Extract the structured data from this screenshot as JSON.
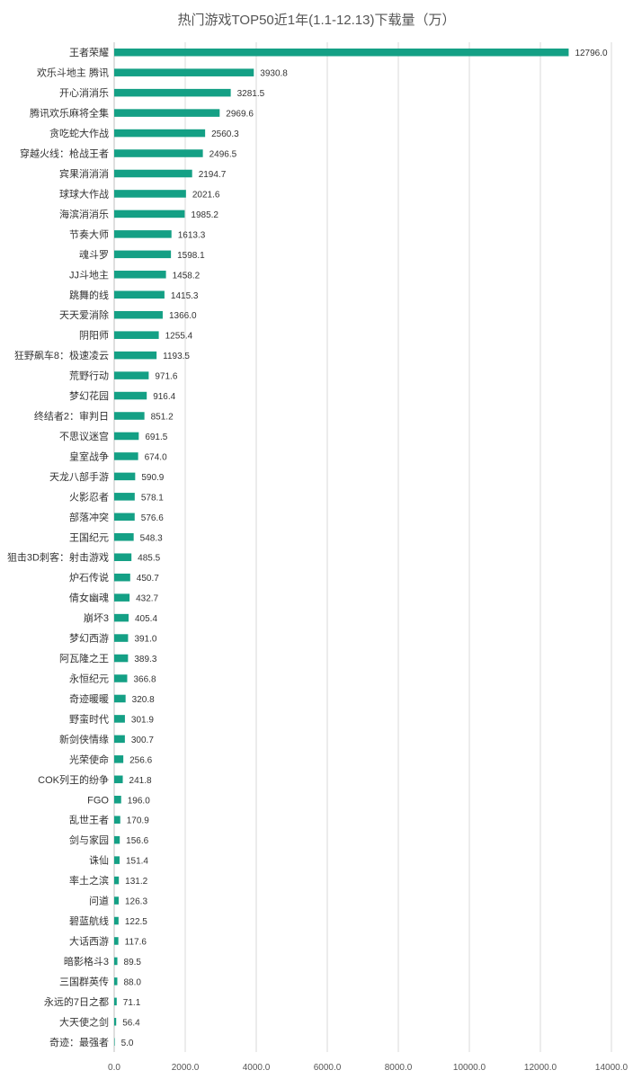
{
  "chart_data": {
    "type": "bar",
    "orientation": "horizontal",
    "title": "热门游戏TOP50近1年(1.1-12.13)下载量（万）",
    "xlim": [
      0,
      14000
    ],
    "xticks": [
      "0.0",
      "2000.0",
      "4000.0",
      "6000.0",
      "8000.0",
      "10000.0",
      "12000.0",
      "14000.0"
    ],
    "grid": true,
    "bar_color": "#14a085",
    "categories": [
      "王者荣耀",
      "欢乐斗地主 腾讯",
      "开心消消乐",
      "腾讯欢乐麻将全集",
      "贪吃蛇大作战",
      "穿越火线：枪战王者",
      "宾果消消消",
      "球球大作战",
      "海滨消消乐",
      "节奏大师",
      "魂斗罗",
      "JJ斗地主",
      "跳舞的线",
      "天天爱消除",
      "阴阳师",
      "狂野飙车8：极速凌云",
      "荒野行动",
      "梦幻花园",
      "终结者2：审判日",
      "不思议迷宫",
      "皇室战争",
      "天龙八部手游",
      "火影忍者",
      "部落冲突",
      "王国纪元",
      "狙击3D刺客：射击游戏",
      "炉石传说",
      "倩女幽魂",
      "崩坏3",
      "梦幻西游",
      "阿瓦隆之王",
      "永恒纪元",
      "奇迹暖暖",
      "野蛮时代",
      "新剑侠情缘",
      "光荣使命",
      "COK列王的纷争",
      "FGO",
      "乱世王者",
      "剑与家园",
      "诛仙",
      "率土之滨",
      "问道",
      "碧蓝航线",
      "大话西游",
      "暗影格斗3",
      "三国群英传",
      "永远的7日之都",
      "大天使之剑",
      "奇迹：最强者"
    ],
    "values": [
      12796.0,
      3930.8,
      3281.5,
      2969.6,
      2560.3,
      2496.5,
      2194.7,
      2021.6,
      1985.2,
      1613.3,
      1598.1,
      1458.2,
      1415.3,
      1366.0,
      1255.4,
      1193.5,
      971.6,
      916.4,
      851.2,
      691.5,
      674.0,
      590.9,
      578.1,
      576.6,
      548.3,
      485.5,
      450.7,
      432.7,
      405.4,
      391.0,
      389.3,
      366.8,
      320.8,
      301.9,
      300.7,
      256.6,
      241.8,
      196.0,
      170.9,
      156.6,
      151.4,
      131.2,
      126.3,
      122.5,
      117.6,
      89.5,
      88.0,
      71.1,
      56.4,
      5.0
    ],
    "value_labels": [
      "12796.0",
      "3930.8",
      "3281.5",
      "2969.6",
      "2560.3",
      "2496.5",
      "2194.7",
      "2021.6",
      "1985.2",
      "1613.3",
      "1598.1",
      "1458.2",
      "1415.3",
      "1366.0",
      "1255.4",
      "1193.5",
      "971.6",
      "916.4",
      "851.2",
      "691.5",
      "674.0",
      "590.9",
      "578.1",
      "576.6",
      "548.3",
      "485.5",
      "450.7",
      "432.7",
      "405.4",
      "391.0",
      "389.3",
      "366.8",
      "320.8",
      "301.9",
      "300.7",
      "256.6",
      "241.8",
      "196.0",
      "170.9",
      "156.6",
      "151.4",
      "131.2",
      "126.3",
      "122.5",
      "117.6",
      "89.5",
      "88.0",
      "71.1",
      "56.4",
      "5.0"
    ]
  }
}
